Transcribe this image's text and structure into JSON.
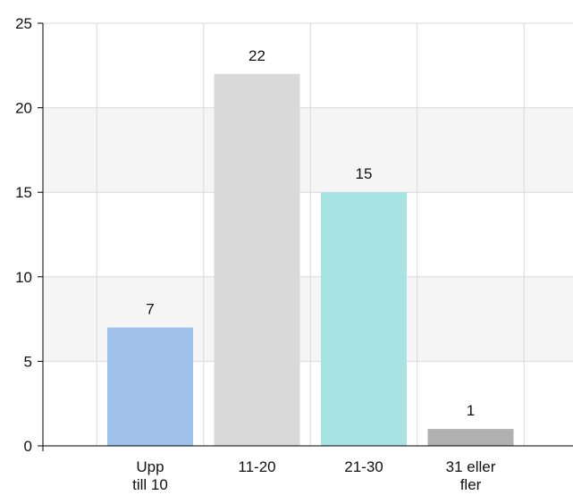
{
  "chart_data": {
    "type": "bar",
    "categories": [
      "Upp till 10",
      "11-20",
      "21-30",
      "31 eller fler"
    ],
    "category_label_lines": [
      [
        "Upp",
        "till 10"
      ],
      [
        "11-20"
      ],
      [
        "21-30"
      ],
      [
        "31 eller",
        "fler"
      ]
    ],
    "values": [
      7,
      22,
      15,
      1
    ],
    "data_labels": [
      "7",
      "22",
      "15",
      "1"
    ],
    "bar_colors": [
      "#a0c1ec",
      "#d9d9d9",
      "#a6e3e2",
      "#b0b0b0"
    ],
    "ylim": [
      0,
      25
    ],
    "yticks": [
      0,
      5,
      10,
      15,
      20,
      25
    ],
    "ytick_labels": [
      "0",
      "5",
      "10",
      "15",
      "20",
      "25"
    ],
    "grid": true,
    "band_color": "#f5f5f5",
    "grid_color": "#d9d9d9",
    "axis_color": "#000000"
  }
}
